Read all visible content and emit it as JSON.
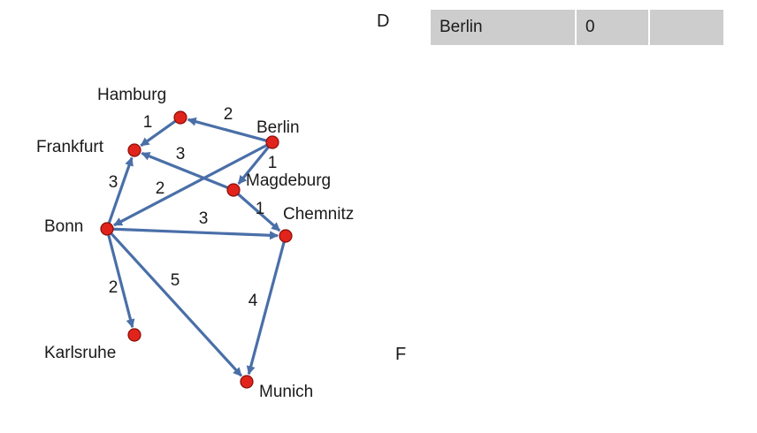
{
  "labels": {
    "d": "D",
    "f": "F"
  },
  "table": {
    "rows": [
      {
        "name": "Berlin",
        "distance": "0",
        "prev": ""
      }
    ]
  },
  "colors": {
    "edge": "#4a6fa8",
    "node": "#e0241c",
    "table_bg": "#cdcdcd"
  },
  "graph": {
    "nodes": [
      {
        "id": "hamburg",
        "label": "Hamburg"
      },
      {
        "id": "berlin",
        "label": "Berlin"
      },
      {
        "id": "frankfurt",
        "label": "Frankfurt"
      },
      {
        "id": "magdeburg",
        "label": "Magdeburg"
      },
      {
        "id": "bonn",
        "label": "Bonn"
      },
      {
        "id": "chemnitz",
        "label": "Chemnitz"
      },
      {
        "id": "karlsruhe",
        "label": "Karlsruhe"
      },
      {
        "id": "munich",
        "label": "Munich"
      }
    ],
    "edges": [
      {
        "from": "berlin",
        "to": "hamburg",
        "weight": "2"
      },
      {
        "from": "hamburg",
        "to": "frankfurt",
        "weight": "1"
      },
      {
        "from": "berlin",
        "to": "magdeburg",
        "weight": "1"
      },
      {
        "from": "berlin",
        "to": "bonn",
        "weight": "2"
      },
      {
        "from": "magdeburg",
        "to": "frankfurt",
        "weight": "3"
      },
      {
        "from": "magdeburg",
        "to": "chemnitz",
        "weight": "1"
      },
      {
        "from": "bonn",
        "to": "frankfurt",
        "weight": "3"
      },
      {
        "from": "bonn",
        "to": "chemnitz",
        "weight": "3"
      },
      {
        "from": "bonn",
        "to": "karlsruhe",
        "weight": "2"
      },
      {
        "from": "bonn",
        "to": "munich",
        "weight": "5"
      },
      {
        "from": "chemnitz",
        "to": "munich",
        "weight": "4"
      }
    ]
  }
}
